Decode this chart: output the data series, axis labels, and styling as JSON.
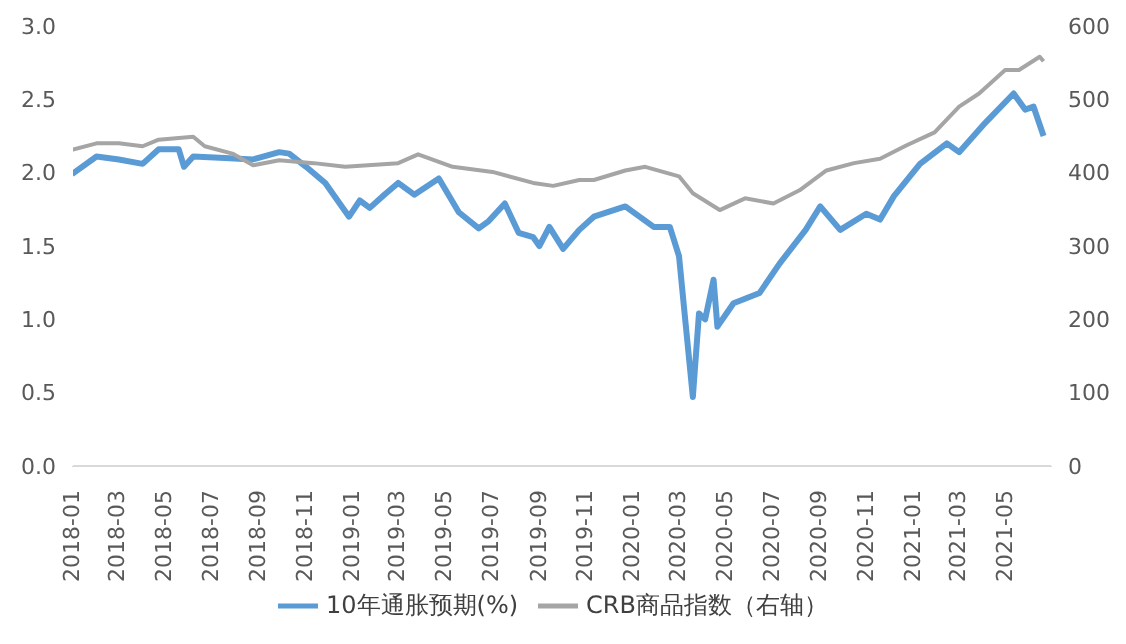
{
  "chart_data": {
    "type": "line",
    "legend": "bottom",
    "marker": "none",
    "xlim": [
      "2018-01-01",
      "2021-07-01"
    ],
    "xticks": [
      "2018-01",
      "2018-03",
      "2018-05",
      "2018-07",
      "2018-09",
      "2018-11",
      "2019-01",
      "2019-03",
      "2019-05",
      "2019-07",
      "2019-09",
      "2019-11",
      "2020-01",
      "2020-03",
      "2020-05",
      "2020-07",
      "2020-09",
      "2020-11",
      "2021-01",
      "2021-03",
      "2021-05"
    ],
    "ylim": [
      0,
      3
    ],
    "yticks": [
      {
        "value": 0,
        "label": "0.0"
      },
      0.5,
      {
        "value": 1,
        "label": "1.0"
      },
      1.5,
      {
        "value": 2,
        "label": "2.0"
      },
      2.5,
      {
        "value": 3,
        "label": "3.0"
      }
    ],
    "y2lim": [
      0,
      600
    ],
    "y2ticks": [
      0,
      100,
      200,
      300,
      400,
      500,
      600
    ],
    "series": [
      {
        "name": "10年通胀预期(%)",
        "color": "#5b9bd5",
        "x": [
          "2018-01-01",
          "2018-02-02",
          "2018-03-03",
          "2018-04-03",
          "2018-04-24",
          "2018-05-20",
          "2018-05-27",
          "2018-06-08",
          "2018-07-19",
          "2018-08-25",
          "2018-09-28",
          "2018-10-11",
          "2018-11-02",
          "2018-11-27",
          "2018-12-28",
          "2019-01-11",
          "2019-01-24",
          "2019-02-12",
          "2019-03-02",
          "2019-03-23",
          "2019-04-24",
          "2019-05-20",
          "2019-06-15",
          "2019-06-28",
          "2019-07-19",
          "2019-08-06",
          "2019-08-25",
          "2019-09-02",
          "2019-09-15",
          "2019-10-03",
          "2019-10-24",
          "2019-11-12",
          "2019-12-23",
          "2020-01-29",
          "2020-02-19",
          "2020-03-02",
          "2020-03-10",
          "2020-03-20",
          "2020-03-28",
          "2020-04-05",
          "2020-04-16",
          "2020-04-21",
          "2020-05-12",
          "2020-06-15",
          "2020-07-11",
          "2020-08-14",
          "2020-09-02",
          "2020-09-28",
          "2020-11-01",
          "2020-11-19",
          "2020-12-07",
          "2021-01-10",
          "2021-02-14",
          "2021-03-02",
          "2021-04-05",
          "2021-05-12",
          "2021-05-27",
          "2021-06-07",
          "2021-06-20"
        ],
        "values": [
          1.99,
          2.11,
          2.09,
          2.06,
          2.16,
          2.16,
          2.04,
          2.11,
          2.1,
          2.09,
          2.14,
          2.13,
          2.04,
          1.93,
          1.7,
          1.81,
          1.76,
          1.85,
          1.93,
          1.85,
          1.96,
          1.73,
          1.62,
          1.67,
          1.79,
          1.59,
          1.56,
          1.5,
          1.63,
          1.48,
          1.61,
          1.7,
          1.77,
          1.63,
          1.63,
          1.43,
          1.0,
          0.47,
          1.04,
          1.0,
          1.27,
          0.95,
          1.11,
          1.18,
          1.38,
          1.61,
          1.77,
          1.61,
          1.72,
          1.68,
          1.84,
          2.06,
          2.2,
          2.14,
          2.34,
          2.54,
          2.43,
          2.45,
          2.25
        ]
      },
      {
        "name": "CRB商品指数（右轴）",
        "color": "#a5a5a5",
        "axis": "y2",
        "x": [
          "2018-01-01",
          "2018-02-02",
          "2018-03-03",
          "2018-04-03",
          "2018-04-24",
          "2018-06-08",
          "2018-06-23",
          "2018-07-29",
          "2018-08-25",
          "2018-09-28",
          "2018-11-12",
          "2018-12-23",
          "2019-03-02",
          "2019-03-28",
          "2019-05-12",
          "2019-07-03",
          "2019-08-25",
          "2019-09-20",
          "2019-10-24",
          "2019-11-12",
          "2019-12-23",
          "2020-01-18",
          "2020-03-02",
          "2020-03-20",
          "2020-04-24",
          "2020-05-27",
          "2020-07-03",
          "2020-08-06",
          "2020-09-10",
          "2020-10-16",
          "2020-11-19",
          "2020-12-23",
          "2021-01-29",
          "2021-03-02",
          "2021-03-28",
          "2021-05-01",
          "2021-05-19",
          "2021-06-15",
          "2021-06-20"
        ],
        "values": [
          431,
          440,
          440,
          436,
          445,
          449,
          436,
          426,
          410,
          417,
          413,
          408,
          413,
          425,
          408,
          401,
          386,
          382,
          390,
          390,
          403,
          408,
          395,
          372,
          349,
          365,
          358,
          376,
          403,
          413,
          419,
          437,
          455,
          490,
          508,
          540,
          540,
          558,
          552
        ]
      }
    ]
  }
}
